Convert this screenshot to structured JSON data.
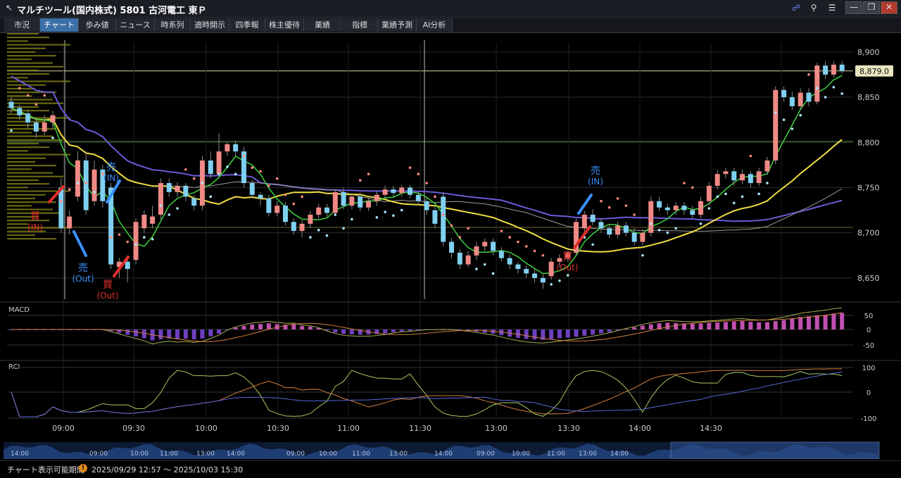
{
  "window": {
    "title": "マルチツール(国内株式) 5801 古河電工 東Ｐ",
    "icons": [
      "link-icon",
      "search-icon",
      "menu-icon",
      "minimize-icon",
      "restore-icon",
      "close-icon"
    ]
  },
  "tabs": [
    {
      "label": "市況",
      "active": false
    },
    {
      "label": "チャート",
      "active": true
    },
    {
      "label": "歩み値",
      "active": false
    },
    {
      "label": "ニュース",
      "active": false
    },
    {
      "label": "時系列",
      "active": false
    },
    {
      "label": "適時開示",
      "active": false
    },
    {
      "label": "四季報",
      "active": false
    },
    {
      "label": "株主優待",
      "active": false
    },
    {
      "label": "業績",
      "active": false
    },
    {
      "label": "指標",
      "active": false
    },
    {
      "label": "業績予測",
      "active": false
    },
    {
      "label": "AI分析",
      "active": false
    }
  ],
  "chart": {
    "price_axis": [
      "8,900",
      "8,850",
      "8,800",
      "8,750",
      "8,700",
      "8,650"
    ],
    "last_price_label": "8,879.0",
    "macd_title": "MACD",
    "macd_axis": [
      "50",
      "0",
      "-50"
    ],
    "rci_title": "RCI",
    "rci_axis": [
      "100",
      "0",
      "-100"
    ],
    "time_axis": [
      "09:00",
      "09:30",
      "10:00",
      "10:30",
      "11:00",
      "11:30",
      "13:00",
      "13:30",
      "14:00",
      "14:30"
    ],
    "annotations": [
      {
        "text": "買",
        "sub": "(IN)",
        "color": "#e0302a"
      },
      {
        "text": "売",
        "sub": "(IN)",
        "color": "#3b8fff"
      },
      {
        "text": "売",
        "sub": "(Out)",
        "color": "#3b8fff"
      },
      {
        "text": "買",
        "sub": "(Out)",
        "color": "#e0302a"
      },
      {
        "text": "売",
        "sub": "(IN)",
        "color": "#3b8fff"
      },
      {
        "text": "買",
        "sub": "(Out)",
        "color": "#e0302a"
      }
    ],
    "overview_labels": [
      "14:00",
      "09:00",
      "10:00",
      "11:00",
      "13:00",
      "14:00",
      "09:00",
      "10:00",
      "11:00",
      "13:00",
      "14:00",
      "09:00",
      "10:00",
      "11:00",
      "13:00",
      "14:00"
    ],
    "colors": {
      "up": "#f08a86",
      "down": "#7fd0f0",
      "ma_short": "#3fcf3f",
      "ma_mid": "#f0e040",
      "ma_long": "#6a5ad8",
      "psar_up": "#a8e8ff",
      "psar_down": "#ff8a80"
    }
  },
  "chart_data": {
    "type": "candlestick",
    "title": "",
    "y_range": [
      8625,
      8910
    ],
    "x_labels": [
      "09:00",
      "09:30",
      "10:00",
      "10:30",
      "11:00",
      "11:30",
      "13:00",
      "13:30",
      "14:00",
      "14:30"
    ],
    "candles": [
      {
        "o": 8845,
        "c": 8838,
        "h": 8850,
        "l": 8832
      },
      {
        "o": 8838,
        "c": 8830,
        "h": 8842,
        "l": 8825
      },
      {
        "o": 8832,
        "c": 8822,
        "h": 8836,
        "l": 8815
      },
      {
        "o": 8822,
        "c": 8812,
        "h": 8828,
        "l": 8805
      },
      {
        "o": 8812,
        "c": 8822,
        "h": 8830,
        "l": 8808
      },
      {
        "o": 8822,
        "c": 8830,
        "h": 8835,
        "l": 8815
      },
      {
        "o": 8750,
        "c": 8705,
        "h": 8760,
        "l": 8700
      },
      {
        "o": 8705,
        "c": 8718,
        "h": 8725,
        "l": 8698
      },
      {
        "o": 8740,
        "c": 8780,
        "h": 8790,
        "l": 8735
      },
      {
        "o": 8780,
        "c": 8725,
        "h": 8790,
        "l": 8720
      },
      {
        "o": 8735,
        "c": 8770,
        "h": 8780,
        "l": 8730
      },
      {
        "o": 8770,
        "c": 8735,
        "h": 8775,
        "l": 8728
      },
      {
        "o": 8750,
        "c": 8665,
        "h": 8755,
        "l": 8660
      },
      {
        "o": 8662,
        "c": 8668,
        "h": 8672,
        "l": 8650
      },
      {
        "o": 8668,
        "c": 8660,
        "h": 8675,
        "l": 8645
      },
      {
        "o": 8670,
        "c": 8712,
        "h": 8716,
        "l": 8665
      },
      {
        "o": 8705,
        "c": 8720,
        "h": 8725,
        "l": 8700
      },
      {
        "o": 8710,
        "c": 8718,
        "h": 8730,
        "l": 8705
      },
      {
        "o": 8720,
        "c": 8755,
        "h": 8760,
        "l": 8715
      },
      {
        "o": 8755,
        "c": 8745,
        "h": 8760,
        "l": 8740
      },
      {
        "o": 8745,
        "c": 8752,
        "h": 8756,
        "l": 8740
      },
      {
        "o": 8752,
        "c": 8740,
        "h": 8755,
        "l": 8735
      },
      {
        "o": 8738,
        "c": 8730,
        "h": 8742,
        "l": 8725
      },
      {
        "o": 8730,
        "c": 8780,
        "h": 8785,
        "l": 8725
      },
      {
        "o": 8780,
        "c": 8765,
        "h": 8790,
        "l": 8760
      },
      {
        "o": 8765,
        "c": 8790,
        "h": 8810,
        "l": 8760
      },
      {
        "o": 8790,
        "c": 8798,
        "h": 8800,
        "l": 8785
      },
      {
        "o": 8798,
        "c": 8790,
        "h": 8802,
        "l": 8785
      },
      {
        "o": 8790,
        "c": 8755,
        "h": 8795,
        "l": 8750
      },
      {
        "o": 8755,
        "c": 8742,
        "h": 8758,
        "l": 8738
      },
      {
        "o": 8742,
        "c": 8738,
        "h": 8745,
        "l": 8730
      },
      {
        "o": 8738,
        "c": 8722,
        "h": 8742,
        "l": 8718
      },
      {
        "o": 8722,
        "c": 8730,
        "h": 8735,
        "l": 8718
      },
      {
        "o": 8730,
        "c": 8712,
        "h": 8734,
        "l": 8708
      },
      {
        "o": 8712,
        "c": 8702,
        "h": 8716,
        "l": 8698
      },
      {
        "o": 8702,
        "c": 8710,
        "h": 8714,
        "l": 8695
      },
      {
        "o": 8710,
        "c": 8720,
        "h": 8724,
        "l": 8705
      },
      {
        "o": 8720,
        "c": 8728,
        "h": 8732,
        "l": 8716
      },
      {
        "o": 8728,
        "c": 8722,
        "h": 8732,
        "l": 8718
      },
      {
        "o": 8722,
        "c": 8745,
        "h": 8748,
        "l": 8720
      },
      {
        "o": 8745,
        "c": 8730,
        "h": 8750,
        "l": 8726
      },
      {
        "o": 8730,
        "c": 8740,
        "h": 8744,
        "l": 8726
      },
      {
        "o": 8740,
        "c": 8728,
        "h": 8744,
        "l": 8724
      },
      {
        "o": 8728,
        "c": 8735,
        "h": 8740,
        "l": 8724
      },
      {
        "o": 8735,
        "c": 8742,
        "h": 8746,
        "l": 8730
      },
      {
        "o": 8742,
        "c": 8748,
        "h": 8752,
        "l": 8738
      },
      {
        "o": 8748,
        "c": 8744,
        "h": 8752,
        "l": 8740
      },
      {
        "o": 8744,
        "c": 8750,
        "h": 8753,
        "l": 8740
      },
      {
        "o": 8750,
        "c": 8742,
        "h": 8753,
        "l": 8738
      },
      {
        "o": 8742,
        "c": 8735,
        "h": 8746,
        "l": 8730
      },
      {
        "o": 8735,
        "c": 8725,
        "h": 8740,
        "l": 8720
      },
      {
        "o": 8725,
        "c": 8710,
        "h": 8730,
        "l": 8705
      },
      {
        "o": 8740,
        "c": 8690,
        "h": 8745,
        "l": 8685
      },
      {
        "o": 8690,
        "c": 8678,
        "h": 8694,
        "l": 8672
      },
      {
        "o": 8678,
        "c": 8665,
        "h": 8682,
        "l": 8660
      },
      {
        "o": 8665,
        "c": 8675,
        "h": 8680,
        "l": 8662
      },
      {
        "o": 8675,
        "c": 8685,
        "h": 8690,
        "l": 8670
      },
      {
        "o": 8685,
        "c": 8690,
        "h": 8694,
        "l": 8680
      },
      {
        "o": 8690,
        "c": 8680,
        "h": 8694,
        "l": 8675
      },
      {
        "o": 8680,
        "c": 8672,
        "h": 8684,
        "l": 8668
      },
      {
        "o": 8672,
        "c": 8665,
        "h": 8676,
        "l": 8660
      },
      {
        "o": 8665,
        "c": 8660,
        "h": 8668,
        "l": 8655
      },
      {
        "o": 8660,
        "c": 8655,
        "h": 8664,
        "l": 8650
      },
      {
        "o": 8655,
        "c": 8650,
        "h": 8660,
        "l": 8645
      },
      {
        "o": 8650,
        "c": 8645,
        "h": 8655,
        "l": 8638
      },
      {
        "o": 8652,
        "c": 8668,
        "h": 8672,
        "l": 8648
      },
      {
        "o": 8668,
        "c": 8672,
        "h": 8676,
        "l": 8662
      },
      {
        "o": 8672,
        "c": 8678,
        "h": 8680,
        "l": 8668
      },
      {
        "o": 8678,
        "c": 8712,
        "h": 8716,
        "l": 8674
      },
      {
        "o": 8705,
        "c": 8720,
        "h": 8724,
        "l": 8700
      },
      {
        "o": 8720,
        "c": 8712,
        "h": 8726,
        "l": 8708
      },
      {
        "o": 8712,
        "c": 8705,
        "h": 8716,
        "l": 8700
      },
      {
        "o": 8705,
        "c": 8698,
        "h": 8710,
        "l": 8694
      },
      {
        "o": 8698,
        "c": 8708,
        "h": 8712,
        "l": 8694
      },
      {
        "o": 8708,
        "c": 8700,
        "h": 8712,
        "l": 8696
      },
      {
        "o": 8700,
        "c": 8690,
        "h": 8705,
        "l": 8686
      },
      {
        "o": 8690,
        "c": 8700,
        "h": 8704,
        "l": 8686
      },
      {
        "o": 8700,
        "c": 8735,
        "h": 8740,
        "l": 8696
      },
      {
        "o": 8735,
        "c": 8728,
        "h": 8740,
        "l": 8724
      },
      {
        "o": 8728,
        "c": 8725,
        "h": 8732,
        "l": 8720
      },
      {
        "o": 8725,
        "c": 8730,
        "h": 8734,
        "l": 8720
      },
      {
        "o": 8730,
        "c": 8725,
        "h": 8734,
        "l": 8720
      },
      {
        "o": 8725,
        "c": 8720,
        "h": 8730,
        "l": 8716
      },
      {
        "o": 8720,
        "c": 8735,
        "h": 8740,
        "l": 8716
      },
      {
        "o": 8735,
        "c": 8752,
        "h": 8756,
        "l": 8730
      },
      {
        "o": 8752,
        "c": 8765,
        "h": 8770,
        "l": 8748
      },
      {
        "o": 8765,
        "c": 8768,
        "h": 8772,
        "l": 8760
      },
      {
        "o": 8768,
        "c": 8758,
        "h": 8772,
        "l": 8752
      },
      {
        "o": 8758,
        "c": 8765,
        "h": 8770,
        "l": 8754
      },
      {
        "o": 8765,
        "c": 8755,
        "h": 8768,
        "l": 8750
      },
      {
        "o": 8755,
        "c": 8768,
        "h": 8772,
        "l": 8752
      },
      {
        "o": 8768,
        "c": 8780,
        "h": 8784,
        "l": 8764
      },
      {
        "o": 8780,
        "c": 8858,
        "h": 8862,
        "l": 8776
      },
      {
        "o": 8858,
        "c": 8850,
        "h": 8862,
        "l": 8845
      },
      {
        "o": 8850,
        "c": 8840,
        "h": 8856,
        "l": 8836
      },
      {
        "o": 8840,
        "c": 8855,
        "h": 8860,
        "l": 8836
      },
      {
        "o": 8855,
        "c": 8845,
        "h": 8860,
        "l": 8840
      },
      {
        "o": 8845,
        "c": 8885,
        "h": 8888,
        "l": 8842
      },
      {
        "o": 8885,
        "c": 8875,
        "h": 8890,
        "l": 8870
      },
      {
        "o": 8875,
        "c": 8886,
        "h": 8890,
        "l": 8872
      },
      {
        "o": 8886,
        "c": 8879,
        "h": 8890,
        "l": 8876
      }
    ],
    "last_price": 8879.0
  }
}
